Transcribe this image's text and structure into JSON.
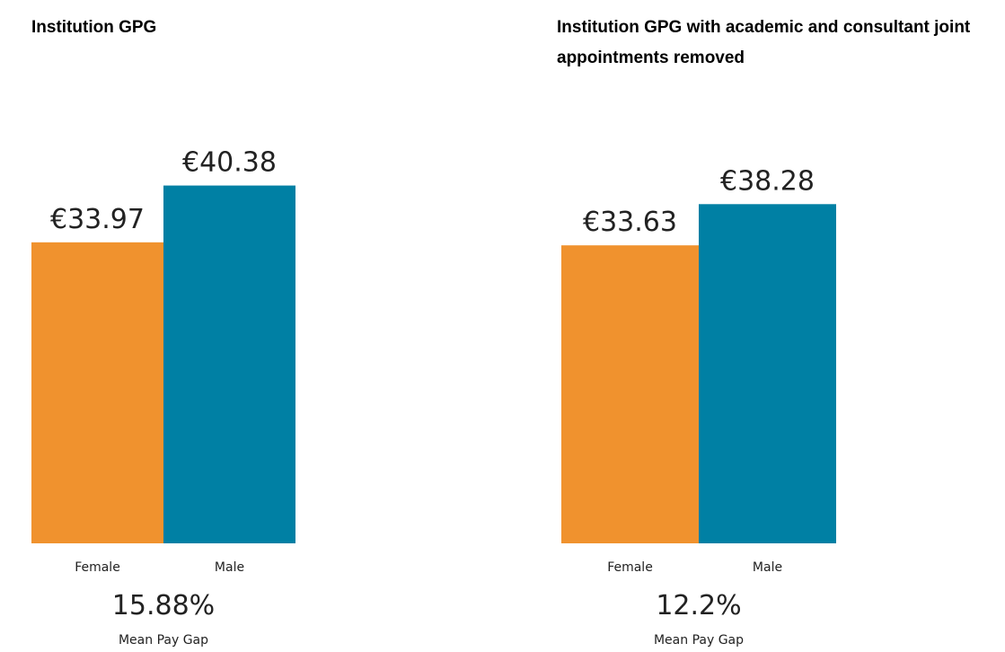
{
  "chart_data": [
    {
      "type": "bar",
      "title": "Institution GPG",
      "categories": [
        "Female",
        "Male"
      ],
      "values": [
        33.97,
        40.38
      ],
      "value_labels": [
        "€33.97",
        "€40.38"
      ],
      "colors": [
        "#f0922e",
        "#0080a4"
      ],
      "ylim": [
        0,
        45
      ],
      "annotations": [
        "15.88%",
        "Mean Pay Gap"
      ]
    },
    {
      "type": "bar",
      "title": "Institution GPG with academic and consultant joint appointments removed",
      "categories": [
        "Female",
        "Male"
      ],
      "values": [
        33.63,
        38.28
      ],
      "value_labels": [
        "€33.63",
        "€38.28"
      ],
      "colors": [
        "#f0922e",
        "#0080a4"
      ],
      "ylim": [
        0,
        45
      ],
      "annotations": [
        "12.2%",
        "Mean Pay Gap"
      ]
    }
  ]
}
